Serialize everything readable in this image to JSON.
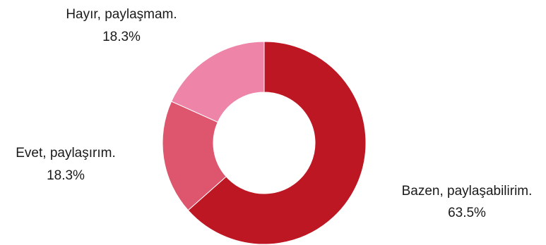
{
  "chart_data": {
    "type": "pie",
    "donut": true,
    "title": "",
    "slices": [
      {
        "label": "Bazen, paylaşabilirim.",
        "value": 63.5,
        "value_label": "63.5%",
        "color": "#be1724"
      },
      {
        "label": "Evet, paylaşırım.",
        "value": 18.3,
        "value_label": "18.3%",
        "color": "#de566e"
      },
      {
        "label": "Hayır, paylaşmam.",
        "value": 18.3,
        "value_label": "18.3%",
        "color": "#ee84a8"
      }
    ],
    "start_angle": "12 o'clock",
    "direction": "clockwise",
    "legend": "none",
    "labels": "outside"
  }
}
